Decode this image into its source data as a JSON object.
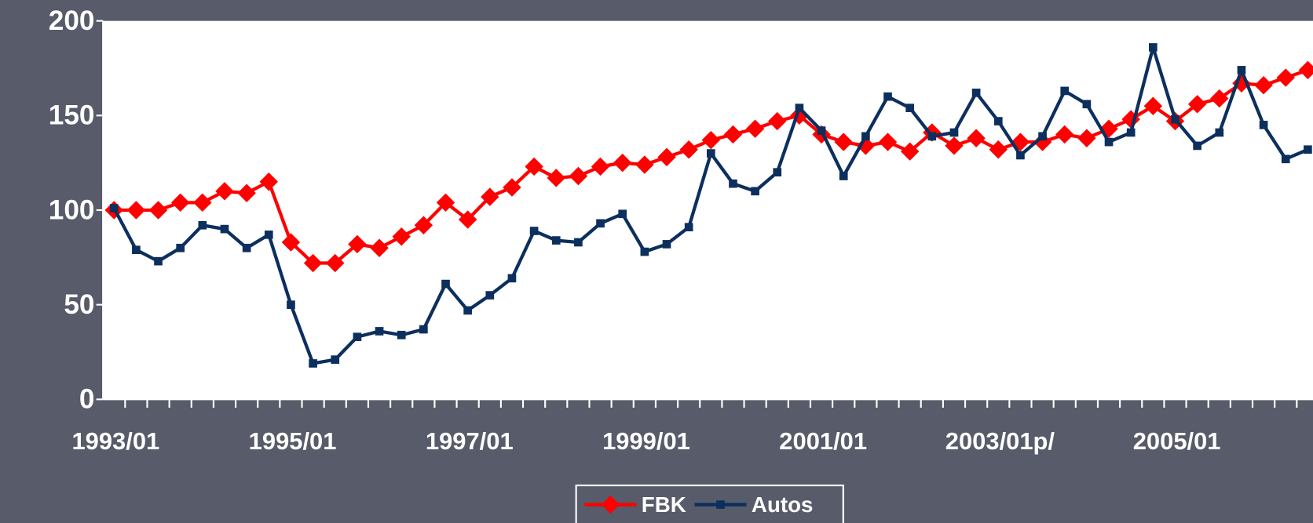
{
  "chart_data": {
    "type": "line",
    "categories": [
      "1993/01",
      null,
      null,
      null,
      null,
      null,
      null,
      null,
      "1995/01",
      null,
      null,
      null,
      null,
      null,
      null,
      null,
      "1997/01",
      null,
      null,
      null,
      null,
      null,
      null,
      null,
      "1999/01",
      null,
      null,
      null,
      null,
      null,
      null,
      null,
      "2001/01",
      null,
      null,
      null,
      null,
      null,
      null,
      null,
      "2003/01p/",
      null,
      null,
      null,
      null,
      null,
      null,
      null,
      "2005/01",
      null,
      null,
      null,
      null,
      null,
      null
    ],
    "series": [
      {
        "name": "FBK",
        "color": "#ff0000",
        "marker": "diamond",
        "values": [
          100,
          100,
          100,
          104,
          104,
          110,
          109,
          115,
          83,
          72,
          72,
          82,
          80,
          86,
          92,
          104,
          95,
          107,
          112,
          123,
          117,
          118,
          123,
          125,
          124,
          128,
          132,
          137,
          140,
          143,
          147,
          150,
          140,
          136,
          134,
          136,
          131,
          141,
          134,
          138,
          132,
          136,
          136,
          140,
          138,
          143,
          148,
          155,
          147,
          156,
          159,
          167,
          166,
          170,
          174
        ]
      },
      {
        "name": "Autos",
        "color": "#0c2f5e",
        "marker": "square",
        "values": [
          101,
          79,
          73,
          80,
          92,
          90,
          80,
          87,
          50,
          19,
          21,
          33,
          36,
          34,
          37,
          61,
          47,
          55,
          64,
          89,
          84,
          83,
          93,
          98,
          78,
          82,
          91,
          130,
          114,
          110,
          120,
          154,
          142,
          118,
          139,
          160,
          154,
          139,
          141,
          162,
          147,
          129,
          139,
          163,
          156,
          136,
          141,
          186,
          148,
          134,
          141,
          174,
          145,
          127,
          132
        ]
      }
    ],
    "ylim": [
      0,
      200
    ],
    "yticks": [
      0,
      50,
      100,
      150,
      200
    ],
    "legend": "bottom"
  }
}
